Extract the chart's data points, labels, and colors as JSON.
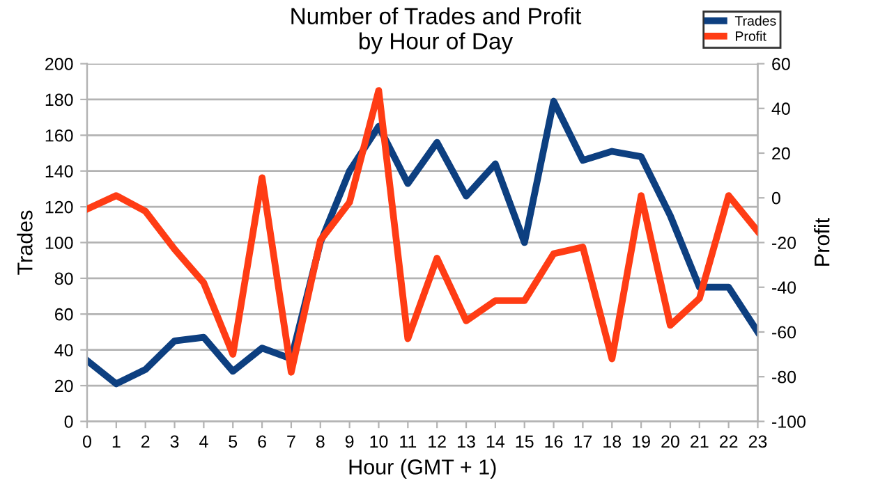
{
  "chart_data": {
    "type": "line",
    "title": "Number of Trades and Profit\nby Hour of Day",
    "xlabel": "Hour (GMT + 1)",
    "ylabel": "Trades",
    "y2label": "Profit",
    "categories": [
      "0",
      "1",
      "2",
      "3",
      "4",
      "5",
      "6",
      "7",
      "8",
      "9",
      "10",
      "11",
      "12",
      "13",
      "14",
      "15",
      "16",
      "17",
      "18",
      "19",
      "20",
      "21",
      "22",
      "23"
    ],
    "series": [
      {
        "name": "Trades",
        "color": "#0d3f80",
        "values": [
          34,
          21,
          29,
          45,
          47,
          28,
          41,
          35,
          100,
          140,
          165,
          133,
          156,
          126,
          144,
          100,
          179,
          146,
          151,
          148,
          115,
          75,
          75,
          50
        ]
      },
      {
        "name": "Profit",
        "color": "#ff3c14",
        "axis": "y2",
        "values": [
          -5,
          1,
          -6,
          -23,
          -38,
          -70,
          9,
          -78,
          -19,
          -2,
          48,
          -63,
          -27,
          -55,
          -46,
          -46,
          -25,
          -22,
          -72,
          1,
          -57,
          -45,
          1,
          -15
        ]
      }
    ],
    "ylim": [
      0,
      200
    ],
    "yticks": [
      0,
      20,
      40,
      60,
      80,
      100,
      120,
      140,
      160,
      180,
      200
    ],
    "y2lim": [
      -100,
      60
    ],
    "y2ticks": [
      -100,
      -80,
      -60,
      -40,
      -20,
      0,
      20,
      40,
      60
    ],
    "grid": "y",
    "legend": "top right",
    "marker": "none",
    "line_style": "solid"
  }
}
